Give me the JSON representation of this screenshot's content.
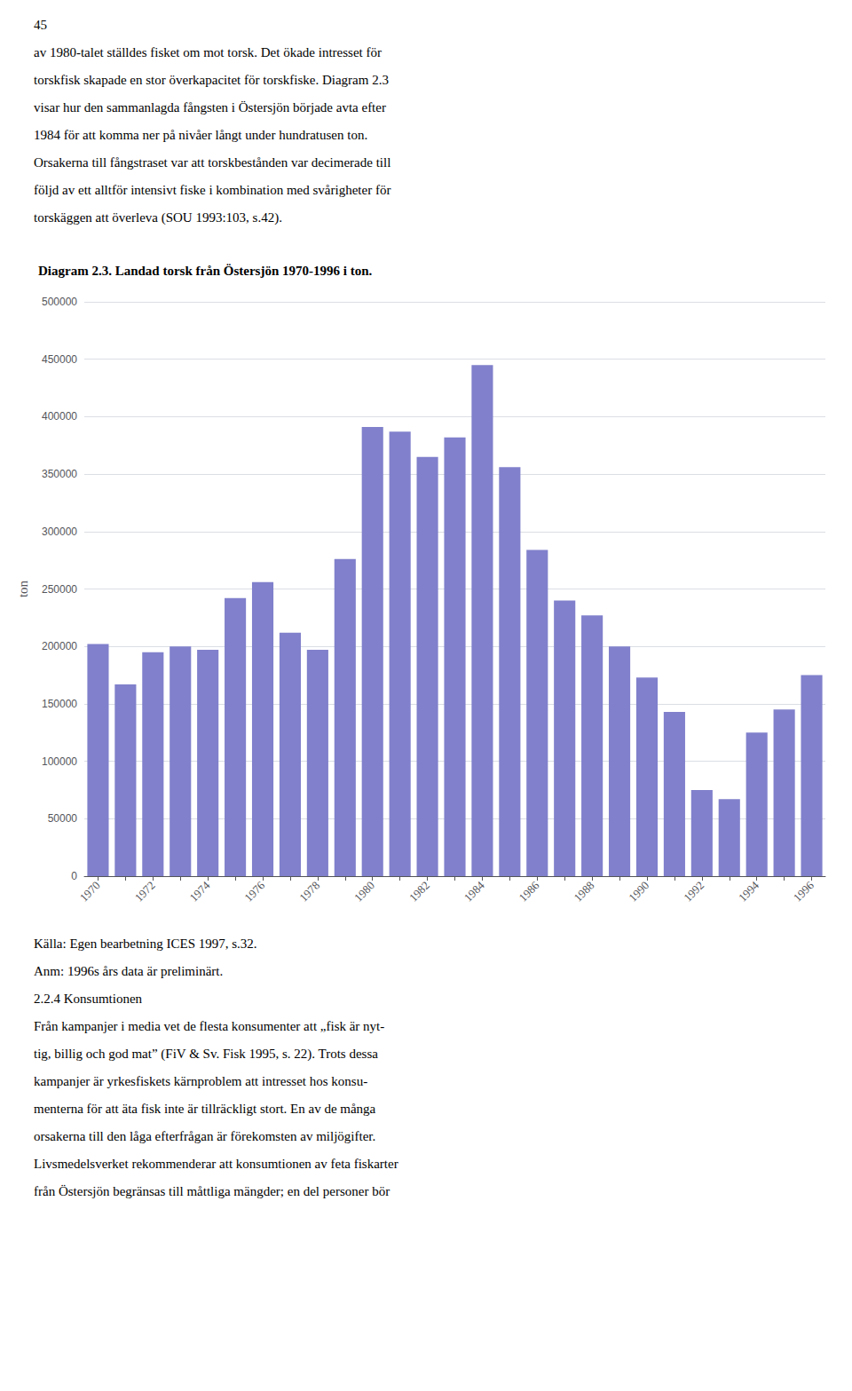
{
  "chart_data": {
    "type": "bar",
    "title": "Diagram 2.3. Landad torsk från Östersjön 1970-1996 i ton.",
    "ylabel": "ton",
    "categories": [
      "1970",
      null,
      "1972",
      null,
      "1974",
      null,
      "1976",
      null,
      "1978",
      null,
      "1980",
      null,
      "1982",
      null,
      "1984",
      null,
      "1986",
      null,
      "1988",
      null,
      "1990",
      null,
      "1992",
      null,
      "1994",
      null,
      "1996"
    ],
    "values": [
      202000,
      167000,
      195000,
      200000,
      197000,
      242000,
      256000,
      212000,
      197000,
      276000,
      391000,
      387000,
      365000,
      382000,
      445000,
      356000,
      284000,
      240000,
      227000,
      200000,
      173000,
      143000,
      75000,
      67000,
      125000,
      145000,
      175000
    ],
    "color": "#8080cc",
    "ylim": [
      0,
      500000
    ],
    "yticks": [
      0,
      50000,
      100000,
      150000,
      200000,
      250000,
      300000,
      350000,
      400000,
      450000,
      500000
    ],
    "grid": true,
    "annotations": [
      [
        "45",
        "av 1980-talet ställdes fisket om mot torsk. Det ökade intresset för",
        "torskfisk skapade en stor överkapacitet för torskfiske. Diagram 2.3",
        "visar hur den sammanlagda fångsten i Östersjön började avta efter",
        "1984 för att komma ner på nivåer långt under hundratusen ton.",
        "Orsakerna till fångstraset var att torskbestånden var decimerade till",
        "följd av ett alltför intensivt fiske i kombination med svårigheter för",
        "torskäggen att överleva (SOU 1993:103, s.42)."
      ],
      [
        "Källa: Egen bearbetning ICES 1997, s.32.",
        "Anm: 1996s års data är preliminärt.",
        "2.2.4 Konsumtionen",
        "Från kampanjer i media vet de flesta konsumenter att „fisk är nyt-",
        "tig, billig och god mat” (FiV & Sv. Fisk 1995, s. 22). Trots dessa",
        "kampanjer är yrkesfiskets kärnproblem att intresset hos konsu-",
        "menterna för att äta fisk inte är tillräckligt stort. En av de många",
        "orsakerna till den låga efterfrågan är förekomsten av miljögifter.",
        "Livsmedelsverket rekommenderar att konsumtionen av feta fiskarter",
        "från Östersjön begränsas till måttliga mängder; en del personer bör"
      ]
    ]
  }
}
